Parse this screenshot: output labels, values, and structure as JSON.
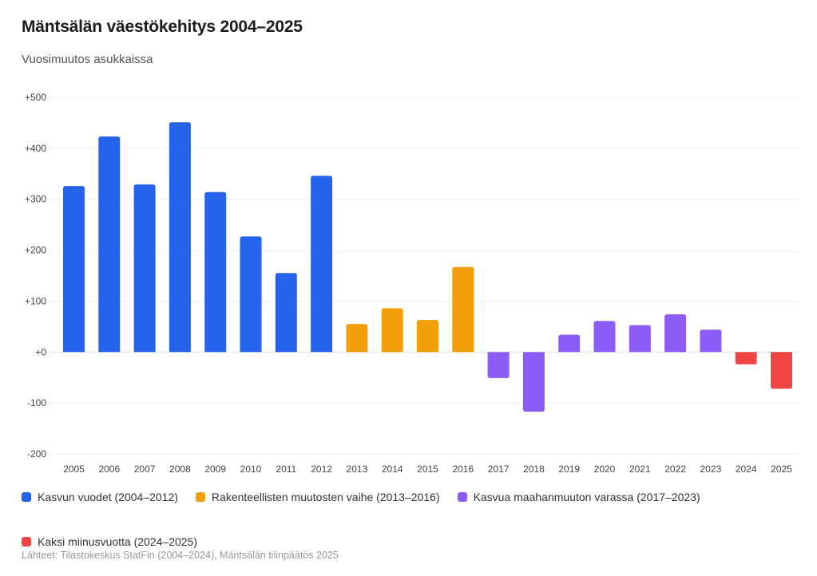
{
  "chart_data": {
    "type": "bar",
    "title": "Mäntsälän väestökehitys 2004–2025",
    "subtitle": "Vuosimuutos asukkaissa",
    "xlabel": "",
    "ylabel": "",
    "ylim": [
      -200,
      500
    ],
    "yticks": [
      500,
      400,
      300,
      200,
      100,
      0,
      -100,
      -200
    ],
    "ytick_labels": [
      "+500",
      "+400",
      "+300",
      "+200",
      "+100",
      "+0",
      "-100",
      "-200"
    ],
    "grid": true,
    "categories": [
      "2005",
      "2006",
      "2007",
      "2008",
      "2009",
      "2010",
      "2011",
      "2012",
      "2013",
      "2014",
      "2015",
      "2016",
      "2017",
      "2018",
      "2019",
      "2020",
      "2021",
      "2022",
      "2023",
      "2024",
      "2025"
    ],
    "values": [
      326,
      423,
      329,
      451,
      314,
      227,
      155,
      346,
      55,
      86,
      63,
      167,
      -51,
      -117,
      34,
      61,
      53,
      74,
      44,
      -24,
      -72
    ],
    "groups": [
      0,
      0,
      0,
      0,
      0,
      0,
      0,
      0,
      1,
      1,
      1,
      1,
      2,
      2,
      2,
      2,
      2,
      2,
      2,
      3,
      3
    ],
    "series": [
      {
        "name": "Kasvun vuodet (2004–2012)",
        "color": "#2563EB"
      },
      {
        "name": "Rakenteellisten muutosten vaihe (2013–2016)",
        "color": "#F59E0B"
      },
      {
        "name": "Kasvua maahanmuuton varassa (2017–2023)",
        "color": "#8B5CF6"
      },
      {
        "name": "Kaksi miinusvuotta (2024–2025)",
        "color": "#EF4444"
      }
    ],
    "legend_position": "bottom",
    "source": "Lähteet: Tilastokeskus StatFin (2004–2024), Mäntsälän tilinpäätös 2025"
  }
}
